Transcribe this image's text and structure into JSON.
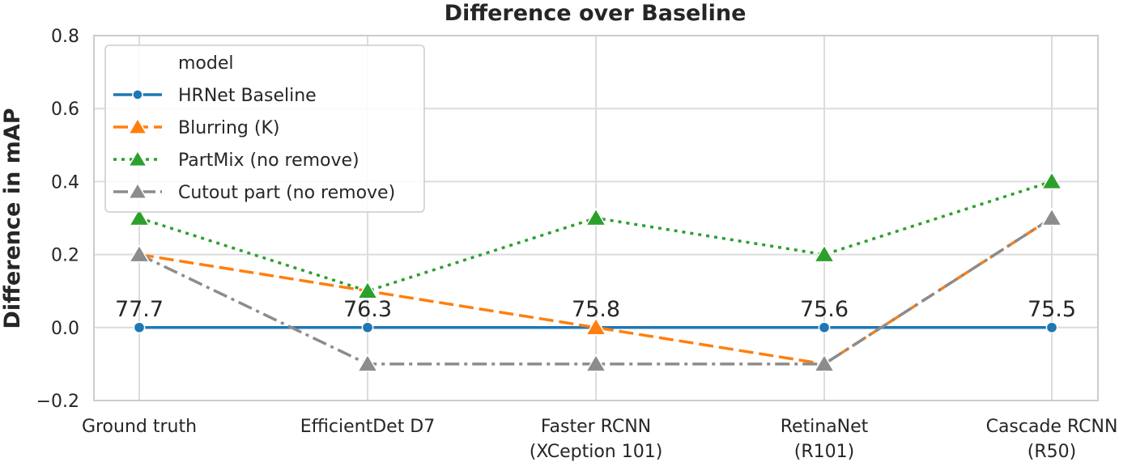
{
  "chart_data": {
    "type": "line",
    "title": "Difference over Baseline",
    "xlabel": "",
    "ylabel": "Difference in mAP",
    "categories": [
      "Ground truth",
      "EfficientDet D7",
      "Faster RCNN\n(XCeption 101)",
      "RetinaNet\n(R101)",
      "Cascade RCNN\n(R50)"
    ],
    "ylim": [
      -0.2,
      0.8
    ],
    "yticks": [
      -0.2,
      0.0,
      0.2,
      0.4,
      0.6,
      0.8
    ],
    "ytick_labels": [
      "−0.2",
      "0.0",
      "0.2",
      "0.4",
      "0.6",
      "0.8"
    ],
    "grid": true,
    "legend": {
      "title": "model",
      "position": "top-left"
    },
    "data_labels": [
      "77.7",
      "76.3",
      "75.8",
      "75.6",
      "75.5"
    ],
    "series": [
      {
        "name": "HRNet Baseline",
        "values": [
          0.0,
          0.0,
          0.0,
          0.0,
          0.0
        ],
        "color": "#1f77b4",
        "dash": "solid",
        "marker": "circle"
      },
      {
        "name": "Blurring (K)",
        "values": [
          0.2,
          0.1,
          0.0,
          -0.1,
          0.3
        ],
        "color": "#ff7f0e",
        "dash": "dashed",
        "marker": "triangle"
      },
      {
        "name": "PartMix (no remove)",
        "values": [
          0.3,
          0.1,
          0.3,
          0.2,
          0.4
        ],
        "color": "#2ca02c",
        "dash": "dotted",
        "marker": "triangle"
      },
      {
        "name": "Cutout part (no remove)",
        "values": [
          0.2,
          -0.1,
          -0.1,
          -0.1,
          0.3
        ],
        "color": "#8c8c8c",
        "dash": "dashdot",
        "marker": "triangle"
      }
    ]
  }
}
